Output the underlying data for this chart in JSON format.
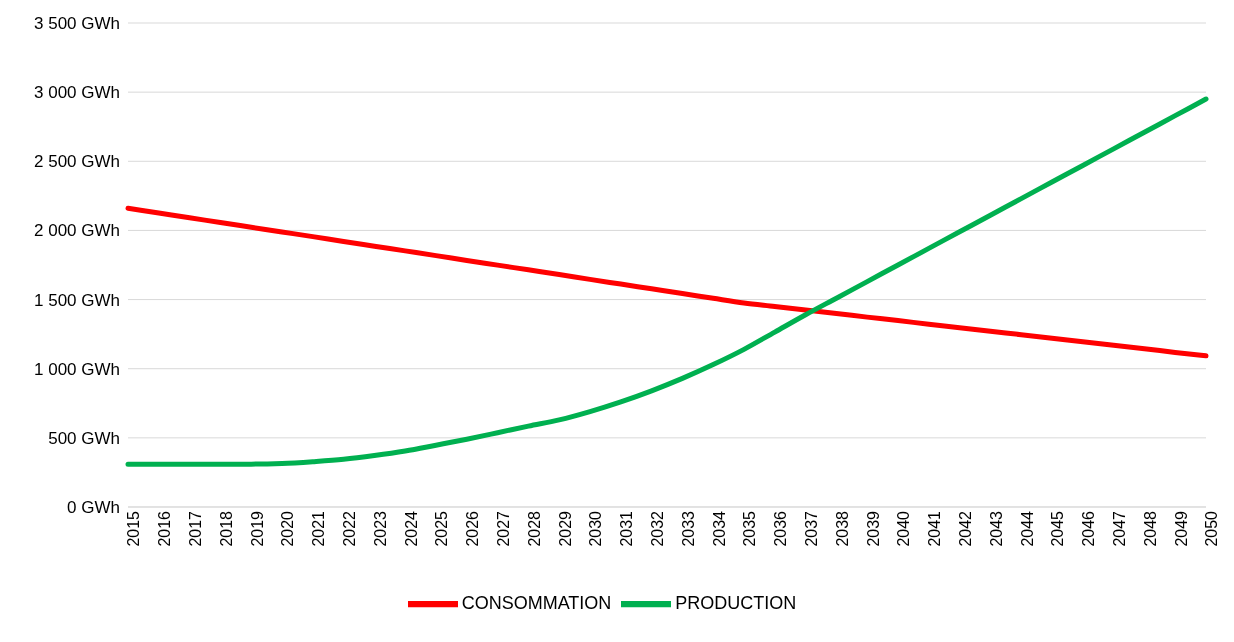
{
  "chart_data": {
    "type": "line",
    "categories": [
      "2015",
      "2016",
      "2017",
      "2018",
      "2019",
      "2020",
      "2021",
      "2022",
      "2023",
      "2024",
      "2025",
      "2026",
      "2027",
      "2028",
      "2029",
      "2030",
      "2031",
      "2032",
      "2033",
      "2034",
      "2035",
      "2036",
      "2037",
      "2038",
      "2039",
      "2040",
      "2041",
      "2042",
      "2043",
      "2044",
      "2045",
      "2046",
      "2047",
      "2048",
      "2049",
      "2050"
    ],
    "series": [
      {
        "name": "CONSOMMATION",
        "color": "#ff0000",
        "values": [
          2160,
          2126,
          2092,
          2057,
          2023,
          1989,
          1955,
          1920,
          1886,
          1852,
          1818,
          1783,
          1749,
          1715,
          1681,
          1646,
          1612,
          1578,
          1544,
          1509,
          1475,
          1450,
          1424,
          1399,
          1373,
          1348,
          1322,
          1297,
          1271,
          1246,
          1220,
          1195,
          1169,
          1144,
          1118,
          1093
        ]
      },
      {
        "name": "PRODUCTION",
        "color": "#00b050",
        "values": [
          310,
          310,
          310,
          310,
          310,
          315,
          328,
          345,
          372,
          405,
          447,
          490,
          537,
          585,
          630,
          690,
          760,
          840,
          930,
          1030,
          1140,
          1265,
          1390,
          1510,
          1630,
          1750,
          1870,
          1990,
          2110,
          2230,
          2350,
          2470,
          2590,
          2710,
          2830,
          2950
        ]
      }
    ],
    "ylim": [
      0,
      3500
    ],
    "yticks": [
      {
        "value": 0,
        "label": "0 GWh"
      },
      {
        "value": 500,
        "label": "500 GWh"
      },
      {
        "value": 1000,
        "label": "1 000 GWh"
      },
      {
        "value": 1500,
        "label": "1 500 GWh"
      },
      {
        "value": 2000,
        "label": "2 000 GWh"
      },
      {
        "value": 2500,
        "label": "2 500 GWh"
      },
      {
        "value": 3000,
        "label": "3 000 GWh"
      },
      {
        "value": 3500,
        "label": "3 500 GWh"
      }
    ],
    "grid": "y",
    "legend": "bottom",
    "marker": "none",
    "line_style": "solid"
  }
}
